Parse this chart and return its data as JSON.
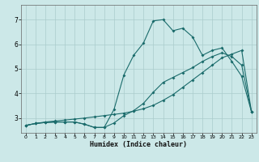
{
  "xlabel": "Humidex (Indice chaleur)",
  "bg_color": "#cce8e8",
  "grid_color": "#aacccc",
  "line_color": "#1a6b6b",
  "xlim": [
    -0.5,
    23.5
  ],
  "ylim": [
    2.4,
    7.6
  ],
  "xticks": [
    0,
    1,
    2,
    3,
    4,
    5,
    6,
    7,
    8,
    9,
    10,
    11,
    12,
    13,
    14,
    15,
    16,
    17,
    18,
    19,
    20,
    21,
    22,
    23
  ],
  "yticks": [
    3,
    4,
    5,
    6,
    7
  ],
  "curve1_x": [
    0,
    1,
    2,
    3,
    4,
    5,
    6,
    7,
    8,
    9,
    10,
    11,
    12,
    13,
    14,
    15,
    16,
    17,
    18,
    19,
    20,
    21,
    22,
    23
  ],
  "curve1_y": [
    2.7,
    2.78,
    2.82,
    2.84,
    2.84,
    2.84,
    2.75,
    2.62,
    2.62,
    2.8,
    3.1,
    3.3,
    3.6,
    4.05,
    4.45,
    4.65,
    4.85,
    5.05,
    5.3,
    5.5,
    5.65,
    5.5,
    5.15,
    3.25
  ],
  "curve2_x": [
    0,
    1,
    2,
    3,
    4,
    5,
    6,
    7,
    8,
    9,
    10,
    11,
    12,
    13,
    14,
    15,
    16,
    17,
    18,
    19,
    20,
    21,
    22,
    23
  ],
  "curve2_y": [
    2.7,
    2.78,
    2.84,
    2.88,
    2.92,
    2.96,
    3.0,
    3.05,
    3.1,
    3.15,
    3.2,
    3.28,
    3.38,
    3.52,
    3.72,
    3.95,
    4.25,
    4.55,
    4.85,
    5.15,
    5.45,
    5.6,
    5.75,
    3.25
  ],
  "curve3_x": [
    0,
    1,
    2,
    3,
    4,
    5,
    6,
    7,
    8,
    9,
    10,
    11,
    12,
    13,
    14,
    15,
    16,
    17,
    18,
    19,
    20,
    21,
    22,
    23
  ],
  "curve3_y": [
    2.7,
    2.78,
    2.82,
    2.84,
    2.84,
    2.84,
    2.75,
    2.62,
    2.62,
    3.35,
    4.75,
    5.55,
    6.05,
    6.95,
    7.0,
    6.55,
    6.65,
    6.3,
    5.55,
    5.75,
    5.85,
    5.3,
    4.7,
    3.25
  ],
  "marker_size": 2.0,
  "lw": 0.8
}
